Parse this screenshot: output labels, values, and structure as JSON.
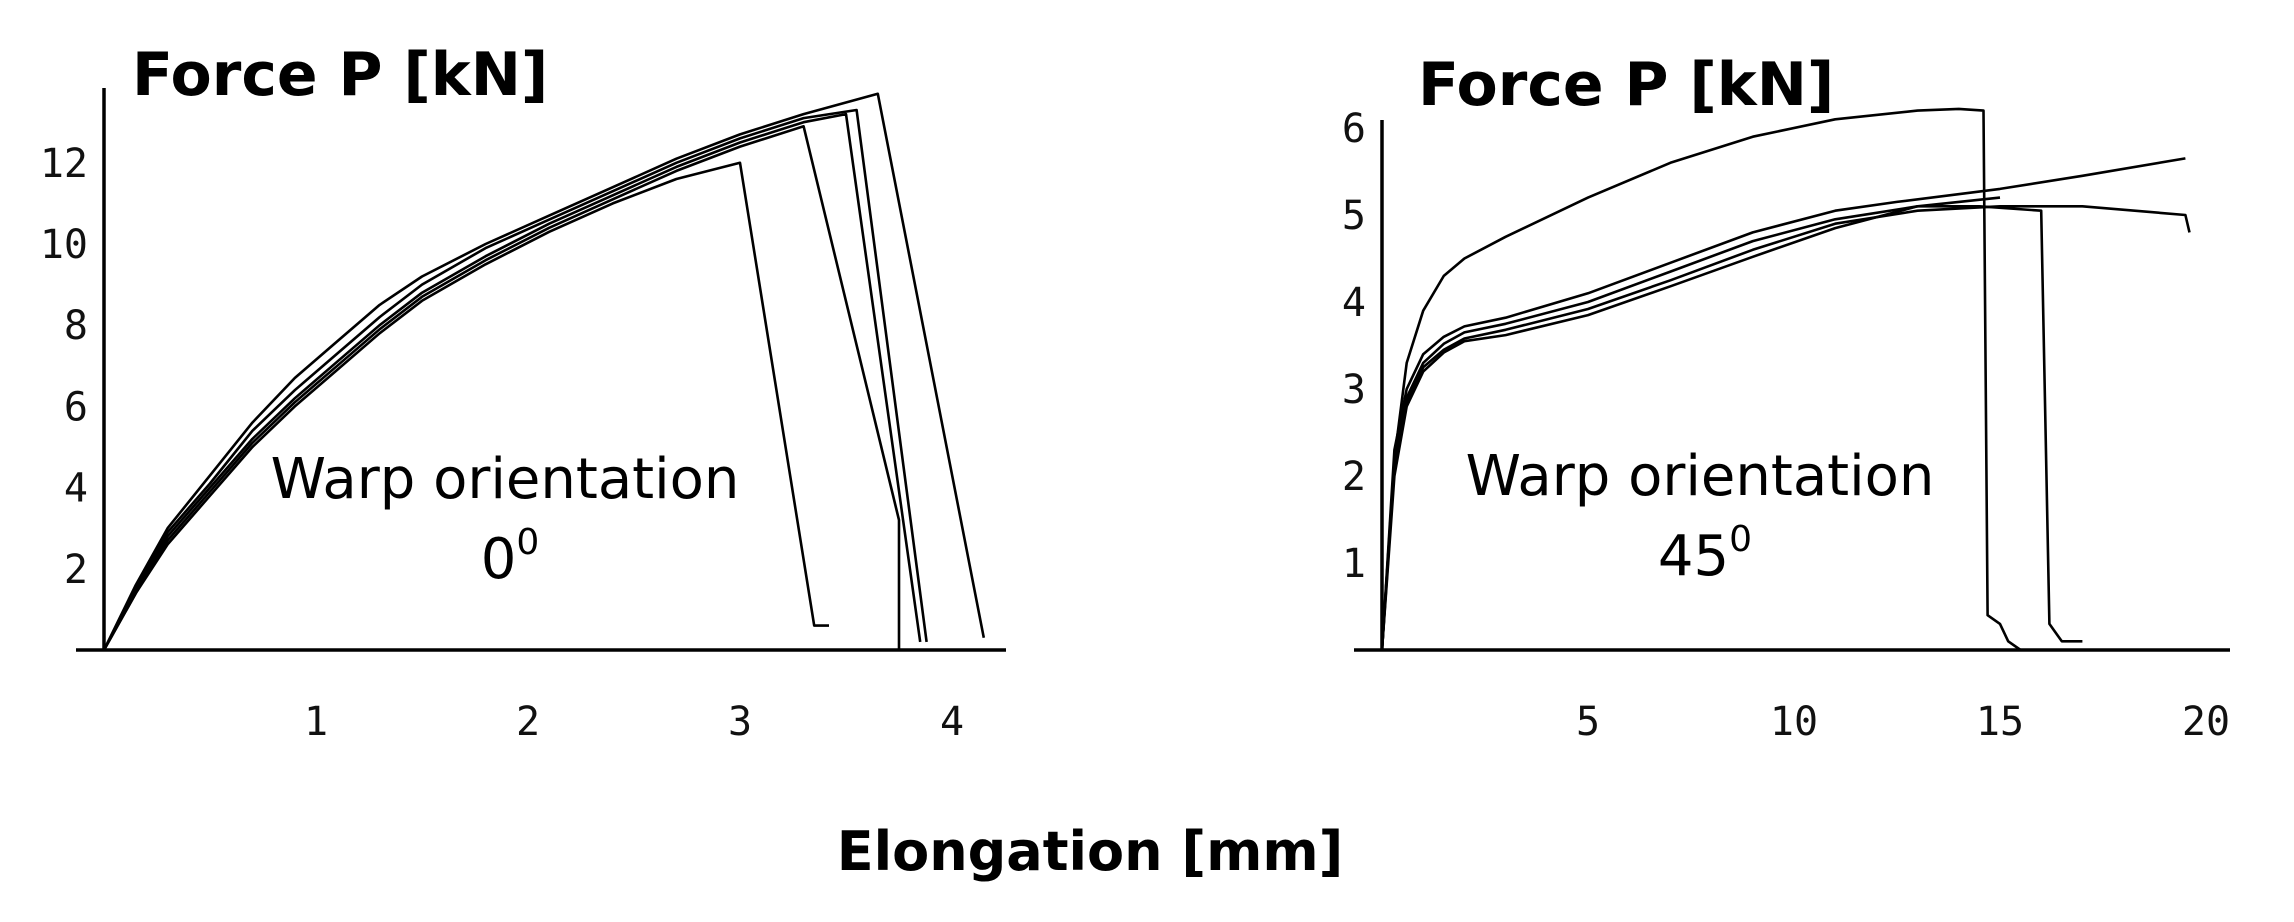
{
  "figure": {
    "xlabel": "Elongation [mm]"
  },
  "chart_data": [
    {
      "type": "line",
      "ylabel": "Force P [kN]",
      "annotation": {
        "line1": "Warp orientation",
        "value": "0",
        "superscript": "0"
      },
      "xlim": [
        0,
        4.3
      ],
      "ylim": [
        0,
        14
      ],
      "xticks": [
        1,
        2,
        3,
        4
      ],
      "yticks": [
        2,
        4,
        6,
        8,
        10,
        12
      ],
      "series": [
        {
          "x": [
            0,
            0.15,
            0.3,
            0.5,
            0.7,
            0.9,
            1.1,
            1.3,
            1.5,
            1.8,
            2.1,
            2.4,
            2.7,
            3.0,
            3.35,
            3.42
          ],
          "y": [
            0,
            1.4,
            2.6,
            3.8,
            5.0,
            6.0,
            6.9,
            7.8,
            8.6,
            9.5,
            10.3,
            11.0,
            11.6,
            12.0,
            0.6,
            0.6
          ]
        },
        {
          "x": [
            0,
            0.15,
            0.3,
            0.5,
            0.7,
            0.9,
            1.1,
            1.3,
            1.5,
            1.8,
            2.1,
            2.4,
            2.7,
            3.0,
            3.3,
            3.75,
            3.75
          ],
          "y": [
            0,
            1.4,
            2.7,
            3.9,
            5.1,
            6.1,
            7.0,
            7.9,
            8.7,
            9.6,
            10.4,
            11.1,
            11.8,
            12.4,
            12.9,
            3.2,
            0
          ]
        },
        {
          "x": [
            0,
            0.15,
            0.3,
            0.5,
            0.7,
            0.9,
            1.1,
            1.3,
            1.5,
            1.8,
            2.1,
            2.4,
            2.7,
            3.0,
            3.3,
            3.5,
            3.85
          ],
          "y": [
            0,
            1.5,
            2.8,
            4.0,
            5.2,
            6.2,
            7.1,
            8.0,
            8.8,
            9.7,
            10.5,
            11.2,
            11.9,
            12.5,
            13.0,
            13.2,
            0.2
          ]
        },
        {
          "x": [
            0,
            0.15,
            0.3,
            0.5,
            0.7,
            0.9,
            1.1,
            1.3,
            1.5,
            1.8,
            2.1,
            2.4,
            2.7,
            3.0,
            3.3,
            3.55,
            3.88
          ],
          "y": [
            0,
            1.5,
            2.9,
            4.1,
            5.4,
            6.4,
            7.3,
            8.2,
            9.0,
            9.9,
            10.6,
            11.3,
            12.0,
            12.6,
            13.1,
            13.3,
            0.2
          ]
        },
        {
          "x": [
            0,
            0.15,
            0.3,
            0.5,
            0.7,
            0.9,
            1.1,
            1.3,
            1.5,
            1.8,
            2.1,
            2.4,
            2.7,
            3.0,
            3.3,
            3.65,
            4.15
          ],
          "y": [
            0,
            1.6,
            3.0,
            4.3,
            5.6,
            6.7,
            7.6,
            8.5,
            9.2,
            10.0,
            10.7,
            11.4,
            12.1,
            12.7,
            13.2,
            13.7,
            0.3
          ]
        }
      ]
    },
    {
      "type": "line",
      "ylabel": "Force P [kN]",
      "annotation": {
        "line1": "Warp orientation",
        "value": "45",
        "superscript": "0"
      },
      "xlim": [
        0,
        20.5
      ],
      "ylim": [
        0,
        6.4
      ],
      "xticks": [
        5,
        10,
        15,
        20
      ],
      "yticks": [
        1,
        2,
        3,
        4,
        5,
        6
      ],
      "series": [
        {
          "x": [
            0,
            0.3,
            0.6,
            1.0,
            1.5,
            2,
            3,
            5,
            7,
            9,
            11,
            13,
            14,
            14.6,
            14.7,
            15.0,
            15.2,
            15.5
          ],
          "y": [
            0,
            2.2,
            3.3,
            3.9,
            4.3,
            4.5,
            4.75,
            5.2,
            5.6,
            5.9,
            6.1,
            6.2,
            6.22,
            6.2,
            0.4,
            0.3,
            0.1,
            0
          ]
        },
        {
          "x": [
            0,
            0.3,
            0.6,
            1.0,
            1.5,
            2,
            3,
            5,
            7,
            9,
            11,
            12.5,
            15,
            17,
            19.5
          ],
          "y": [
            0,
            2.3,
            3.0,
            3.4,
            3.6,
            3.72,
            3.82,
            4.1,
            4.45,
            4.8,
            5.05,
            5.15,
            5.3,
            5.45,
            5.65
          ]
        },
        {
          "x": [
            0,
            0.3,
            0.6,
            1.0,
            1.5,
            2,
            3,
            5,
            7,
            9,
            11,
            13,
            14.5,
            16.0,
            16.2,
            16.5,
            17.0
          ],
          "y": [
            0,
            2.2,
            2.9,
            3.3,
            3.52,
            3.65,
            3.75,
            4.0,
            4.35,
            4.7,
            4.95,
            5.1,
            5.1,
            5.05,
            0.3,
            0.1,
            0.1
          ]
        },
        {
          "x": [
            0,
            0.3,
            0.6,
            1.0,
            1.5,
            2,
            3,
            5,
            7,
            9,
            11,
            13,
            15,
            17,
            19.5,
            19.6
          ],
          "y": [
            0,
            2.1,
            2.85,
            3.25,
            3.45,
            3.58,
            3.68,
            3.92,
            4.25,
            4.6,
            4.9,
            5.05,
            5.1,
            5.1,
            5.0,
            4.8
          ]
        },
        {
          "x": [
            0,
            0.3,
            0.6,
            1.0,
            1.5,
            2,
            3,
            5,
            7,
            9,
            11,
            13,
            14.0,
            15.0
          ],
          "y": [
            0,
            2.0,
            2.8,
            3.2,
            3.42,
            3.55,
            3.62,
            3.85,
            4.18,
            4.52,
            4.85,
            5.1,
            5.15,
            5.2
          ]
        }
      ]
    }
  ]
}
